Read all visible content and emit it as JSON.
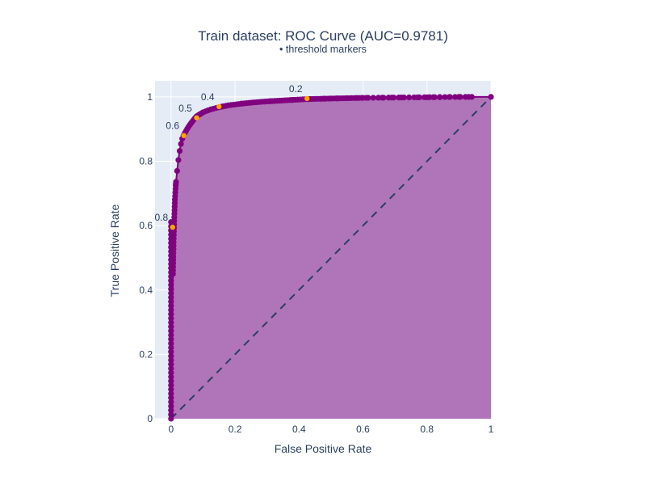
{
  "chart_data": {
    "type": "area",
    "title": "Train dataset: ROC Curve (AUC=0.9781)",
    "subtitle": "• threshold markers",
    "xlabel": "False Positive Rate",
    "ylabel": "True Positive Rate",
    "xlim": [
      -0.05,
      1.0
    ],
    "ylim": [
      0,
      1.05
    ],
    "grid": true,
    "x_ticks": [
      {
        "value": 0,
        "label": "0"
      },
      {
        "value": 0.2,
        "label": "0.2"
      },
      {
        "value": 0.4,
        "label": "0.4"
      },
      {
        "value": 0.6,
        "label": "0.6"
      },
      {
        "value": 0.8,
        "label": "0.8"
      },
      {
        "value": 1,
        "label": "1"
      }
    ],
    "y_ticks": [
      {
        "value": 0,
        "label": "0"
      },
      {
        "value": 0.2,
        "label": "0.2"
      },
      {
        "value": 0.4,
        "label": "0.4"
      },
      {
        "value": 0.6,
        "label": "0.6"
      },
      {
        "value": 0.8,
        "label": "0.8"
      },
      {
        "value": 1,
        "label": "1"
      }
    ],
    "colors": {
      "plot_background": "#e5ecf6",
      "grid": "#ffffff",
      "curve": "#800080",
      "fill": "#b075b9",
      "diagonal": "#2a3f5f",
      "threshold_marker": "#ffa500",
      "text": "#2a3f5f"
    },
    "roc_curve": {
      "x": [
        0,
        0,
        0.002,
        0.004,
        0.006,
        0.008,
        0.01,
        0.012,
        0.015,
        0.02,
        0.025,
        0.03,
        0.035,
        0.04,
        0.05,
        0.06,
        0.07,
        0.08,
        0.1,
        0.12,
        0.15,
        0.18,
        0.22,
        0.26,
        0.3,
        0.35,
        0.42,
        0.5,
        0.6,
        0.7,
        0.8,
        0.9,
        1.0
      ],
      "y": [
        0,
        0.03,
        0.15,
        0.3,
        0.45,
        0.55,
        0.62,
        0.68,
        0.73,
        0.78,
        0.82,
        0.85,
        0.87,
        0.882,
        0.9,
        0.915,
        0.928,
        0.94,
        0.952,
        0.96,
        0.968,
        0.974,
        0.979,
        0.983,
        0.986,
        0.989,
        0.993,
        0.995,
        0.997,
        0.998,
        0.999,
        1.0,
        1.0
      ]
    },
    "diagonal": {
      "x": [
        0,
        1
      ],
      "y": [
        0,
        1
      ]
    },
    "threshold_markers": [
      {
        "label": "0.2",
        "x": 0.425,
        "y": 0.995
      },
      {
        "label": "0.4",
        "x": 0.15,
        "y": 0.97
      },
      {
        "label": "0.5",
        "x": 0.08,
        "y": 0.935
      },
      {
        "label": "0.6",
        "x": 0.04,
        "y": 0.88
      },
      {
        "label": "0.8",
        "x": 0.005,
        "y": 0.595
      }
    ]
  }
}
